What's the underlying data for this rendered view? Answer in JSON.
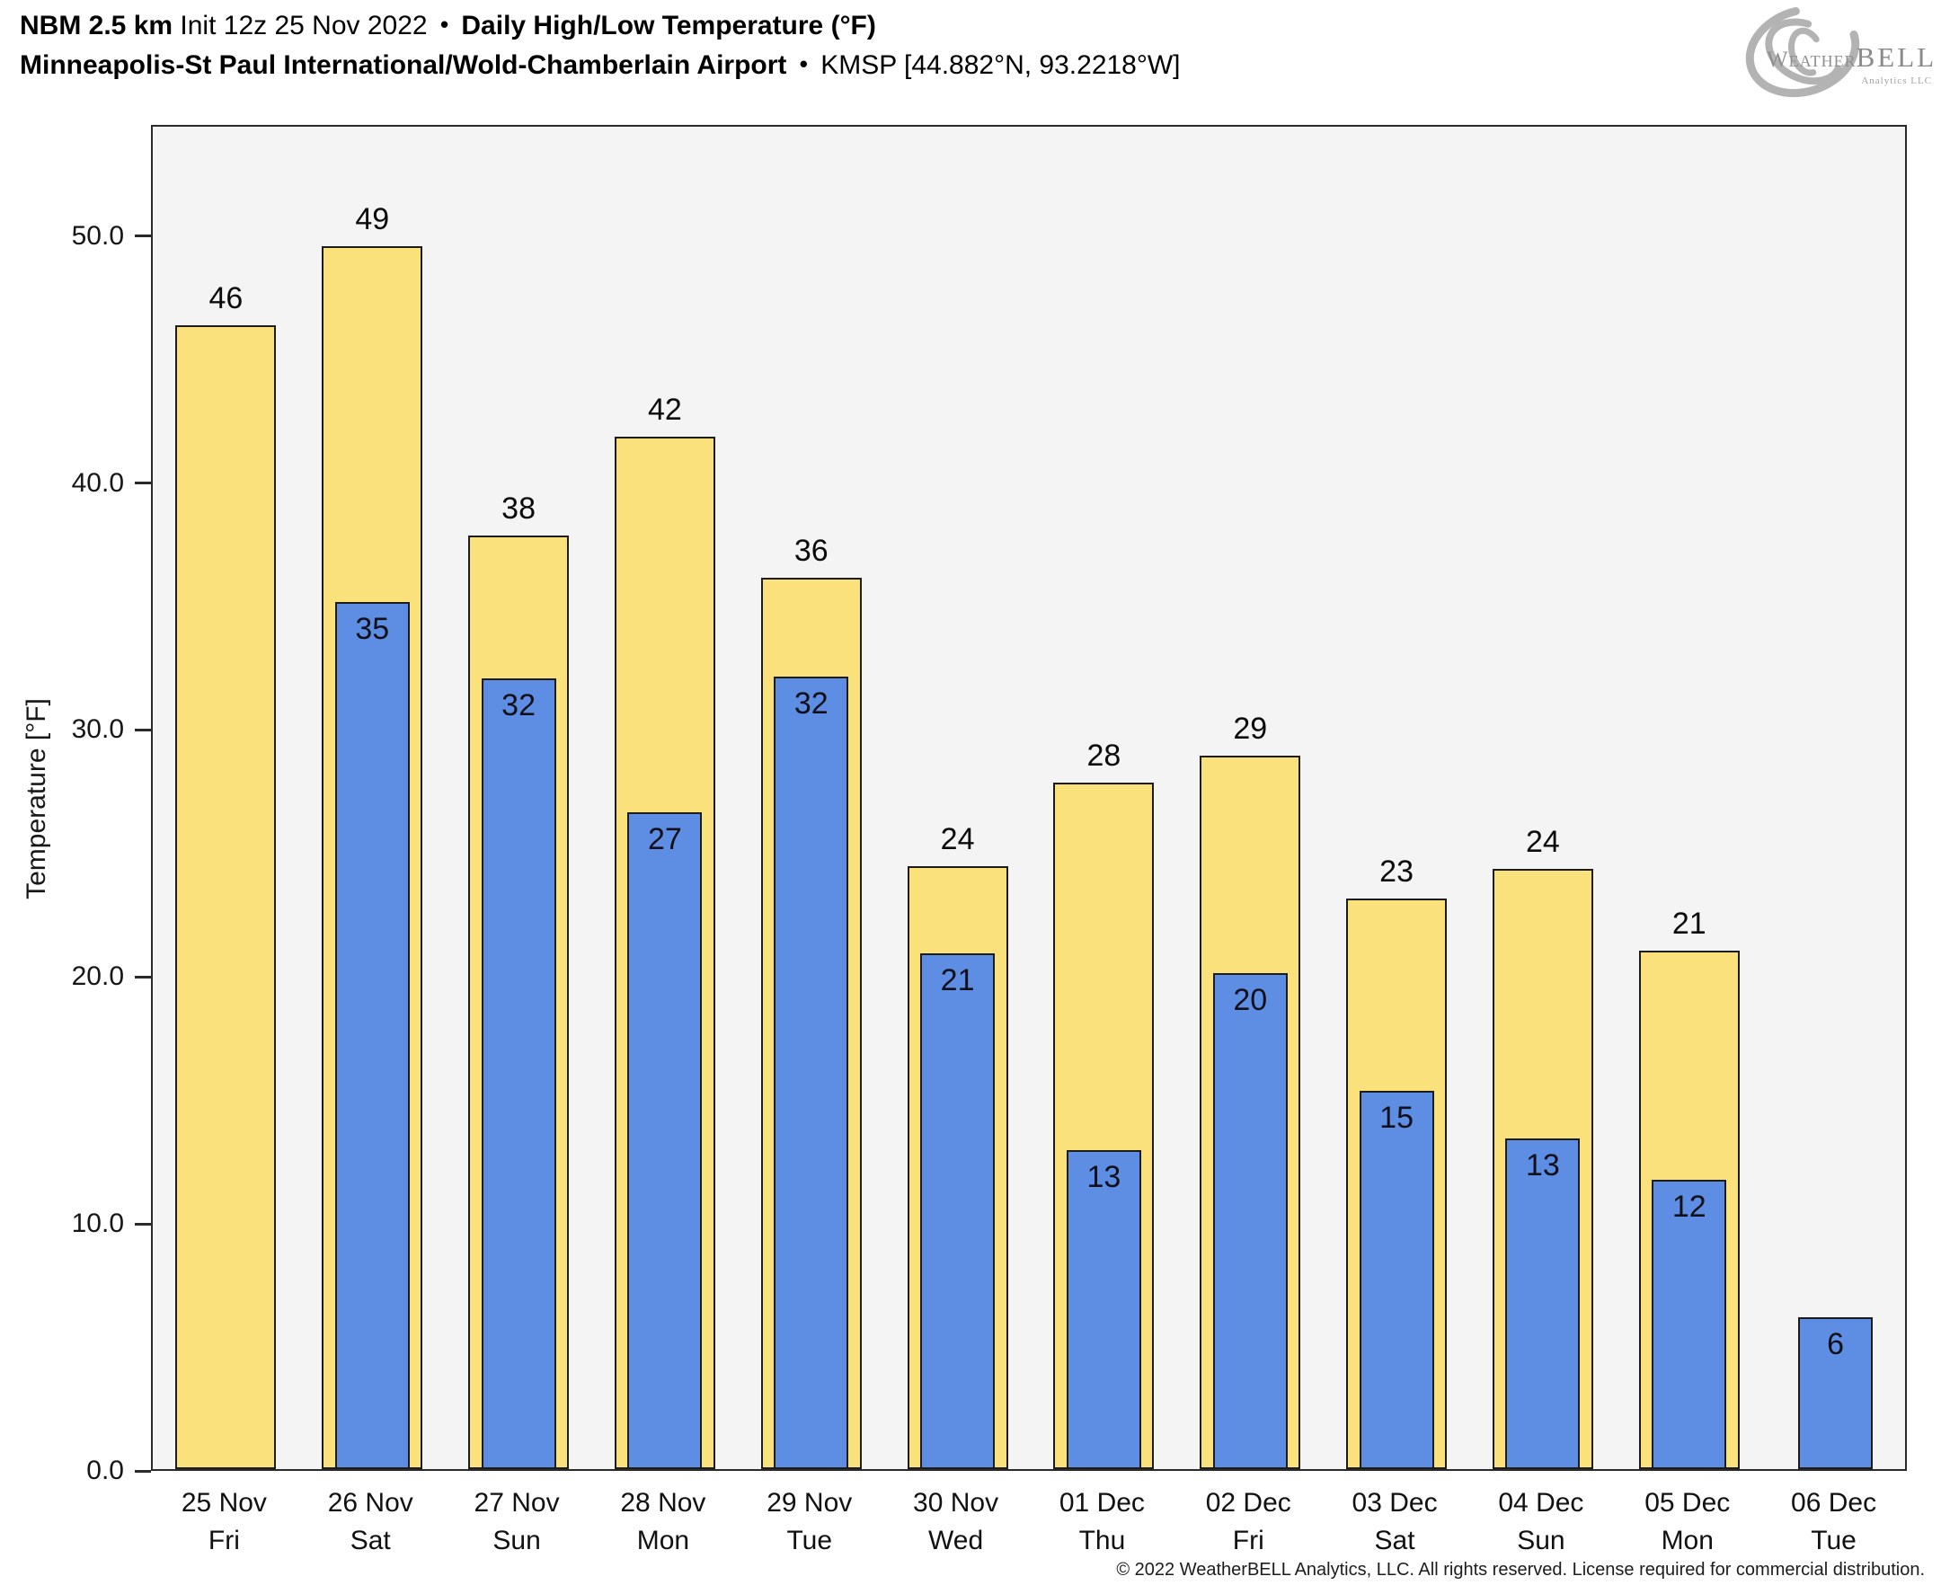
{
  "header": {
    "title_model": "NBM 2.5 km",
    "title_init": "Init 12z 25 Nov 2022",
    "title_sep": "•",
    "title_product": "Daily High/Low Temperature (°F)",
    "station_name": "Minneapolis-St Paul International/Wold-Chamberlain Airport",
    "station_sep": "•",
    "station_id": "KMSP [44.882°N, 93.2218°W]"
  },
  "logo": {
    "weather": "Weather",
    "bell": "BELL",
    "analytics": "Analytics LLC"
  },
  "footer": {
    "copyright": "© 2022 WeatherBELL Analytics, LLC. All rights reserved. License required for commercial distribution."
  },
  "colors": {
    "high_bar": "#fae17c",
    "low_bar": "#5e8ee3",
    "bar_border": "#1c1c1c",
    "plot_background": "#f4f4f4",
    "page_background": "#ffffff"
  },
  "chart_data": {
    "type": "bar",
    "title": "Daily High/Low Temperature (°F)",
    "xlabel": "",
    "ylabel": "Temperature [°F]",
    "ylim": [
      0,
      54.5
    ],
    "yticks": [
      0,
      10,
      20,
      30,
      40,
      50
    ],
    "ytick_labels": [
      "0.0",
      "10.0",
      "20.0",
      "30.0",
      "40.0",
      "50.0"
    ],
    "grid": false,
    "legend_position": "none",
    "categories": [
      {
        "date": "25 Nov",
        "day": "Fri"
      },
      {
        "date": "26 Nov",
        "day": "Sat"
      },
      {
        "date": "27 Nov",
        "day": "Sun"
      },
      {
        "date": "28 Nov",
        "day": "Mon"
      },
      {
        "date": "29 Nov",
        "day": "Tue"
      },
      {
        "date": "30 Nov",
        "day": "Wed"
      },
      {
        "date": "01 Dec",
        "day": "Thu"
      },
      {
        "date": "02 Dec",
        "day": "Fri"
      },
      {
        "date": "03 Dec",
        "day": "Sat"
      },
      {
        "date": "04 Dec",
        "day": "Sun"
      },
      {
        "date": "05 Dec",
        "day": "Mon"
      },
      {
        "date": "06 Dec",
        "day": "Tue"
      }
    ],
    "series": [
      {
        "name": "High",
        "color": "#fae17c",
        "labels": [
          46,
          49,
          38,
          42,
          36,
          24,
          28,
          29,
          23,
          24,
          21,
          null
        ],
        "values": [
          46.3,
          49.5,
          37.8,
          41.8,
          36.1,
          24.4,
          27.8,
          28.9,
          23.1,
          24.3,
          21.0,
          null
        ]
      },
      {
        "name": "Low",
        "color": "#5e8ee3",
        "labels": [
          null,
          35,
          32,
          27,
          32,
          21,
          13,
          20,
          15,
          13,
          12,
          6
        ],
        "values": [
          null,
          35.1,
          32.0,
          26.6,
          32.1,
          20.9,
          12.9,
          20.1,
          15.3,
          13.4,
          11.7,
          6.15
        ]
      }
    ]
  }
}
